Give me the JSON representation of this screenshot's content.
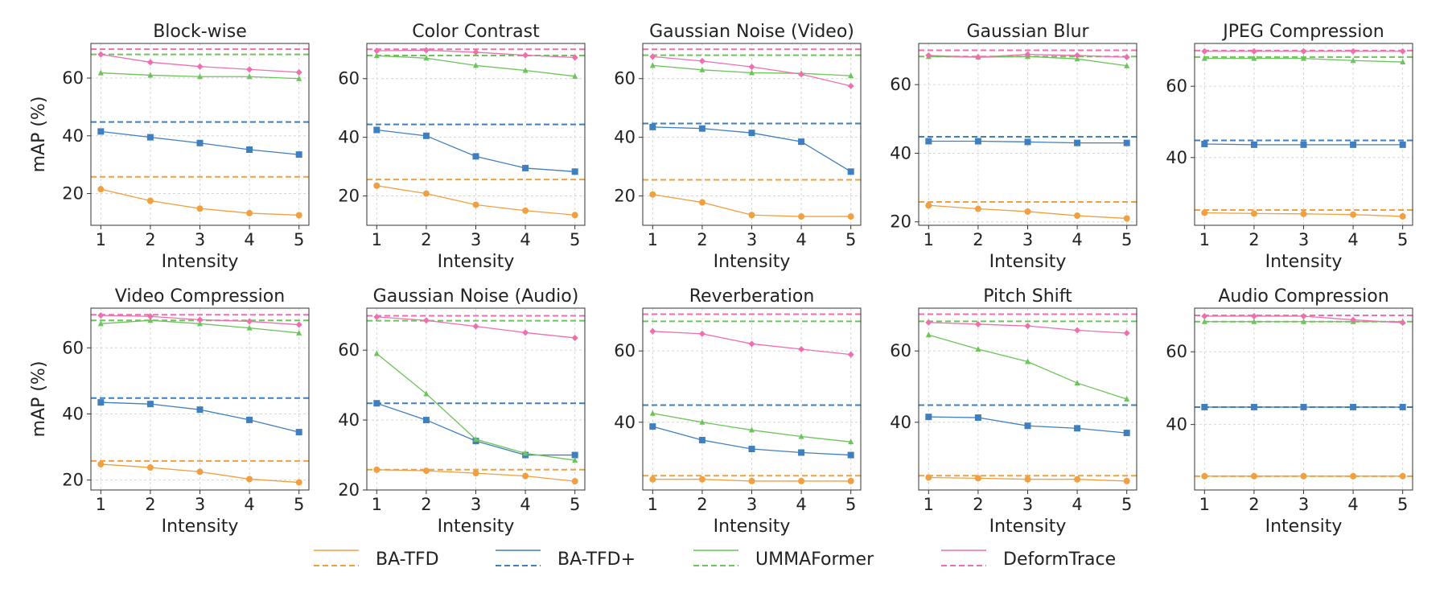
{
  "legend": {
    "items": [
      {
        "label": "BA-TFD",
        "color": "#f0a041"
      },
      {
        "label": "BA-TFD+",
        "color": "#3f7fbf"
      },
      {
        "label": "UMMAFormer",
        "color": "#6cc45a"
      },
      {
        "label": "DeformTrace",
        "color": "#ef6fae"
      }
    ]
  },
  "chart_data": [
    {
      "type": "line",
      "title": "Block-wise",
      "xlabel": "Intensity",
      "ylabel": "mAP (%)",
      "x": [
        1,
        2,
        3,
        4,
        5
      ],
      "xlim": [
        0.8,
        5.2
      ],
      "ylim": [
        9,
        72
      ],
      "yticks": [
        20,
        40,
        60
      ],
      "grid": true,
      "series": [
        {
          "name": "BA-TFD",
          "values": [
            21.5,
            17.5,
            14.8,
            13.2,
            12.5
          ],
          "baseline": 25.8
        },
        {
          "name": "BA-TFD+",
          "values": [
            41.5,
            39.5,
            37.5,
            35.2,
            33.5
          ],
          "baseline": 44.8
        },
        {
          "name": "UMMAFormer",
          "values": [
            61.8,
            61.0,
            60.5,
            60.5,
            59.8
          ],
          "baseline": 68.2
        },
        {
          "name": "DeformTrace",
          "values": [
            68.2,
            65.5,
            64.0,
            63.0,
            62.0
          ],
          "baseline": 70.0
        }
      ]
    },
    {
      "type": "line",
      "title": "Color Contrast",
      "xlabel": "Intensity",
      "ylabel": "",
      "x": [
        1,
        2,
        3,
        4,
        5
      ],
      "xlim": [
        0.8,
        5.2
      ],
      "ylim": [
        10,
        72
      ],
      "yticks": [
        20,
        40,
        60
      ],
      "grid": true,
      "series": [
        {
          "name": "BA-TFD",
          "values": [
            23.5,
            20.8,
            17.0,
            15.0,
            13.5
          ],
          "baseline": 25.6
        },
        {
          "name": "BA-TFD+",
          "values": [
            42.5,
            40.5,
            33.5,
            29.5,
            28.3
          ],
          "baseline": 44.4
        },
        {
          "name": "UMMAFormer",
          "values": [
            67.8,
            67.0,
            64.5,
            62.8,
            60.8
          ],
          "baseline": 67.9
        },
        {
          "name": "DeformTrace",
          "values": [
            69.5,
            69.7,
            69.0,
            68.0,
            67.2
          ],
          "baseline": 70.0
        }
      ]
    },
    {
      "type": "line",
      "title": "Gaussian Noise (Video)",
      "xlabel": "Intensity",
      "ylabel": "",
      "x": [
        1,
        2,
        3,
        4,
        5
      ],
      "xlim": [
        0.8,
        5.2
      ],
      "ylim": [
        10,
        72
      ],
      "yticks": [
        20,
        40,
        60
      ],
      "grid": true,
      "series": [
        {
          "name": "BA-TFD",
          "values": [
            20.5,
            17.8,
            13.5,
            13.0,
            13.0
          ],
          "baseline": 25.5
        },
        {
          "name": "BA-TFD+",
          "values": [
            43.5,
            43.0,
            41.5,
            38.5,
            28.3
          ],
          "baseline": 44.7
        },
        {
          "name": "UMMAFormer",
          "values": [
            64.5,
            63.0,
            62.0,
            61.8,
            61.0
          ],
          "baseline": 68.0
        },
        {
          "name": "DeformTrace",
          "values": [
            67.5,
            66.0,
            64.0,
            61.5,
            57.5
          ],
          "baseline": 70.0
        }
      ]
    },
    {
      "type": "line",
      "title": "Gaussian Blur",
      "xlabel": "Intensity",
      "ylabel": "",
      "x": [
        1,
        2,
        3,
        4,
        5
      ],
      "xlim": [
        0.8,
        5.2
      ],
      "ylim": [
        19,
        72
      ],
      "yticks": [
        20,
        40,
        60
      ],
      "grid": true,
      "series": [
        {
          "name": "BA-TFD",
          "values": [
            24.8,
            23.8,
            23.0,
            21.8,
            21.0
          ],
          "baseline": 25.8
        },
        {
          "name": "BA-TFD+",
          "values": [
            43.5,
            43.5,
            43.3,
            43.0,
            43.0
          ],
          "baseline": 44.8
        },
        {
          "name": "UMMAFormer",
          "values": [
            68.2,
            68.0,
            68.2,
            67.5,
            65.5
          ],
          "baseline": 68.2
        },
        {
          "name": "DeformTrace",
          "values": [
            68.5,
            68.0,
            68.8,
            68.5,
            68.0
          ],
          "baseline": 70.0
        }
      ]
    },
    {
      "type": "line",
      "title": "JPEG Compression",
      "xlabel": "Intensity",
      "ylabel": "",
      "x": [
        1,
        2,
        3,
        4,
        5
      ],
      "xlim": [
        0.8,
        5.2
      ],
      "ylim": [
        21,
        72
      ],
      "yticks": [
        40,
        60
      ],
      "grid": true,
      "series": [
        {
          "name": "BA-TFD",
          "values": [
            24.5,
            24.3,
            24.2,
            24.0,
            23.5
          ],
          "baseline": 25.3
        },
        {
          "name": "BA-TFD+",
          "values": [
            43.8,
            43.6,
            43.6,
            43.6,
            43.6
          ],
          "baseline": 44.8
        },
        {
          "name": "UMMAFormer",
          "values": [
            67.8,
            67.8,
            67.8,
            67.2,
            66.8
          ],
          "baseline": 68.2
        },
        {
          "name": "DeformTrace",
          "values": [
            69.8,
            69.8,
            69.8,
            69.8,
            69.8
          ],
          "baseline": 70.0
        }
      ]
    },
    {
      "type": "line",
      "title": "Video Compression",
      "xlabel": "Intensity",
      "ylabel": "mAP (%)",
      "x": [
        1,
        2,
        3,
        4,
        5
      ],
      "xlim": [
        0.8,
        5.2
      ],
      "ylim": [
        17,
        72
      ],
      "yticks": [
        20,
        40,
        60
      ],
      "grid": true,
      "series": [
        {
          "name": "BA-TFD",
          "values": [
            24.8,
            23.8,
            22.5,
            20.3,
            19.3
          ],
          "baseline": 25.8
        },
        {
          "name": "BA-TFD+",
          "values": [
            43.5,
            43.0,
            41.3,
            38.2,
            34.5
          ],
          "baseline": 44.8
        },
        {
          "name": "UMMAFormer",
          "values": [
            67.3,
            68.3,
            67.3,
            66.0,
            64.5
          ],
          "baseline": 68.3
        },
        {
          "name": "DeformTrace",
          "values": [
            69.8,
            69.5,
            68.5,
            68.0,
            67.0
          ],
          "baseline": 70.0
        }
      ]
    },
    {
      "type": "line",
      "title": "Gaussian Noise (Audio)",
      "xlabel": "Intensity",
      "ylabel": "",
      "x": [
        1,
        2,
        3,
        4,
        5
      ],
      "xlim": [
        0.8,
        5.2
      ],
      "ylim": [
        20,
        72
      ],
      "yticks": [
        20,
        40,
        60
      ],
      "grid": true,
      "series": [
        {
          "name": "BA-TFD",
          "values": [
            25.8,
            25.5,
            24.8,
            24.0,
            22.5
          ],
          "baseline": 25.8
        },
        {
          "name": "BA-TFD+",
          "values": [
            44.8,
            40.0,
            34.0,
            30.0,
            30.0
          ],
          "baseline": 44.8
        },
        {
          "name": "UMMAFormer",
          "values": [
            59.0,
            47.5,
            34.5,
            30.5,
            28.5
          ],
          "baseline": 68.4
        },
        {
          "name": "DeformTrace",
          "values": [
            69.5,
            68.5,
            66.8,
            65.0,
            63.5
          ],
          "baseline": 69.8
        }
      ]
    },
    {
      "type": "line",
      "title": "Reverberation",
      "xlabel": "Intensity",
      "ylabel": "",
      "x": [
        1,
        2,
        3,
        4,
        5
      ],
      "xlim": [
        0.8,
        5.2
      ],
      "ylim": [
        21,
        72
      ],
      "yticks": [
        40,
        60
      ],
      "grid": true,
      "series": [
        {
          "name": "BA-TFD",
          "values": [
            24.0,
            24.0,
            23.5,
            23.5,
            23.5
          ],
          "baseline": 25.0
        },
        {
          "name": "BA-TFD+",
          "values": [
            38.8,
            35.0,
            32.5,
            31.5,
            30.8
          ],
          "baseline": 44.8
        },
        {
          "name": "UMMAFormer",
          "values": [
            42.5,
            40.0,
            37.8,
            36.0,
            34.5
          ],
          "baseline": 68.3
        },
        {
          "name": "DeformTrace",
          "values": [
            65.5,
            64.8,
            62.0,
            60.5,
            59.0
          ],
          "baseline": 70.3
        }
      ]
    },
    {
      "type": "line",
      "title": "Pitch Shift",
      "xlabel": "Intensity",
      "ylabel": "",
      "x": [
        1,
        2,
        3,
        4,
        5
      ],
      "xlim": [
        0.8,
        5.2
      ],
      "ylim": [
        21,
        72
      ],
      "yticks": [
        40,
        60
      ],
      "grid": true,
      "series": [
        {
          "name": "BA-TFD",
          "values": [
            24.5,
            24.3,
            24.0,
            24.0,
            23.5
          ],
          "baseline": 25.0
        },
        {
          "name": "BA-TFD+",
          "values": [
            41.5,
            41.3,
            39.0,
            38.3,
            37.0
          ],
          "baseline": 44.8
        },
        {
          "name": "UMMAFormer",
          "values": [
            64.5,
            60.5,
            57.0,
            51.0,
            46.5
          ],
          "baseline": 68.3
        },
        {
          "name": "DeformTrace",
          "values": [
            68.0,
            67.5,
            67.0,
            65.8,
            65.0
          ],
          "baseline": 70.3
        }
      ]
    },
    {
      "type": "line",
      "title": "Audio Compression",
      "xlabel": "Intensity",
      "ylabel": "",
      "x": [
        1,
        2,
        3,
        4,
        5
      ],
      "xlim": [
        0.8,
        5.2
      ],
      "ylim": [
        22,
        72
      ],
      "yticks": [
        40,
        60
      ],
      "grid": true,
      "series": [
        {
          "name": "BA-TFD",
          "values": [
            25.8,
            25.8,
            25.8,
            25.8,
            25.8
          ],
          "baseline": 25.8
        },
        {
          "name": "BA-TFD+",
          "values": [
            44.8,
            44.8,
            44.8,
            44.8,
            44.8
          ],
          "baseline": 44.8
        },
        {
          "name": "UMMAFormer",
          "values": [
            68.3,
            68.3,
            68.3,
            68.3,
            68.3
          ],
          "baseline": 68.3
        },
        {
          "name": "DeformTrace",
          "values": [
            69.8,
            69.8,
            69.8,
            68.8,
            68.0
          ],
          "baseline": 70.0
        }
      ]
    }
  ]
}
